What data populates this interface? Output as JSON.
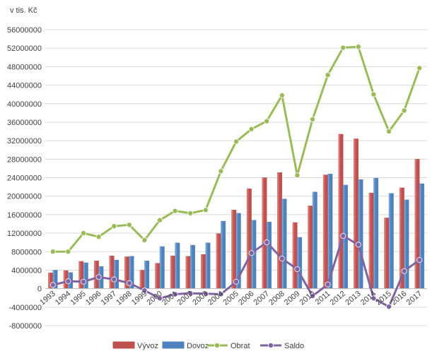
{
  "chart_data": {
    "type": "bar+line",
    "unit_label": "v tis. Kč",
    "categories": [
      "1993",
      "1994",
      "1995",
      "1996",
      "1997",
      "1998",
      "1999",
      "2000",
      "2001",
      "2002",
      "2003",
      "2004",
      "2005",
      "2006",
      "2007",
      "2008",
      "2009",
      "2010",
      "2011",
      "2012",
      "2013",
      "2014",
      "2015",
      "2016",
      "2017"
    ],
    "yticks": [
      "56000000",
      "52000000",
      "48000000",
      "44000000",
      "40000000",
      "36000000",
      "32000000",
      "28000000",
      "24000000",
      "20000000",
      "16000000",
      "12000000",
      "8000000",
      "4000000",
      "0",
      "-4000000",
      "-8000000"
    ],
    "ylim": [
      -8000000,
      56000000
    ],
    "series": [
      {
        "name": "Vývoz",
        "kind": "bar",
        "color": "#c0504d",
        "values": [
          3400000,
          3900000,
          5900000,
          6000000,
          7100000,
          6900000,
          4000000,
          5500000,
          7100000,
          7000000,
          7400000,
          11900000,
          17000000,
          21600000,
          24000000,
          25100000,
          14300000,
          17900000,
          24600000,
          33400000,
          32400000,
          20700000,
          15300000,
          21800000,
          28000000
        ]
      },
      {
        "name": "Dovoz",
        "kind": "bar",
        "color": "#4f81bd",
        "values": [
          4000000,
          3500000,
          5600000,
          4800000,
          6200000,
          7000000,
          6000000,
          9100000,
          9900000,
          9400000,
          9900000,
          14600000,
          16300000,
          14800000,
          14400000,
          19400000,
          11100000,
          20900000,
          24800000,
          22400000,
          23600000,
          23900000,
          20600000,
          19200000,
          22700000
        ]
      },
      {
        "name": "Obrat",
        "kind": "line",
        "color": "#9bbb59",
        "values": [
          8000000,
          8000000,
          12000000,
          11200000,
          13500000,
          13800000,
          10500000,
          14800000,
          16800000,
          16300000,
          17000000,
          25400000,
          31800000,
          34500000,
          36200000,
          41800000,
          24500000,
          36600000,
          46200000,
          52100000,
          52300000,
          42000000,
          34000000,
          38500000,
          47700000
        ]
      },
      {
        "name": "Saldo",
        "kind": "line",
        "color": "#8064a2",
        "values": [
          800000,
          1600000,
          1500000,
          2500000,
          2000000,
          1200000,
          -400000,
          -2100000,
          -1200000,
          -1000000,
          -1100000,
          -1200000,
          1500000,
          7700000,
          10000000,
          6500000,
          4200000,
          -1600000,
          900000,
          11400000,
          9500000,
          -2100000,
          -3900000,
          3800000,
          6200000
        ]
      }
    ]
  }
}
